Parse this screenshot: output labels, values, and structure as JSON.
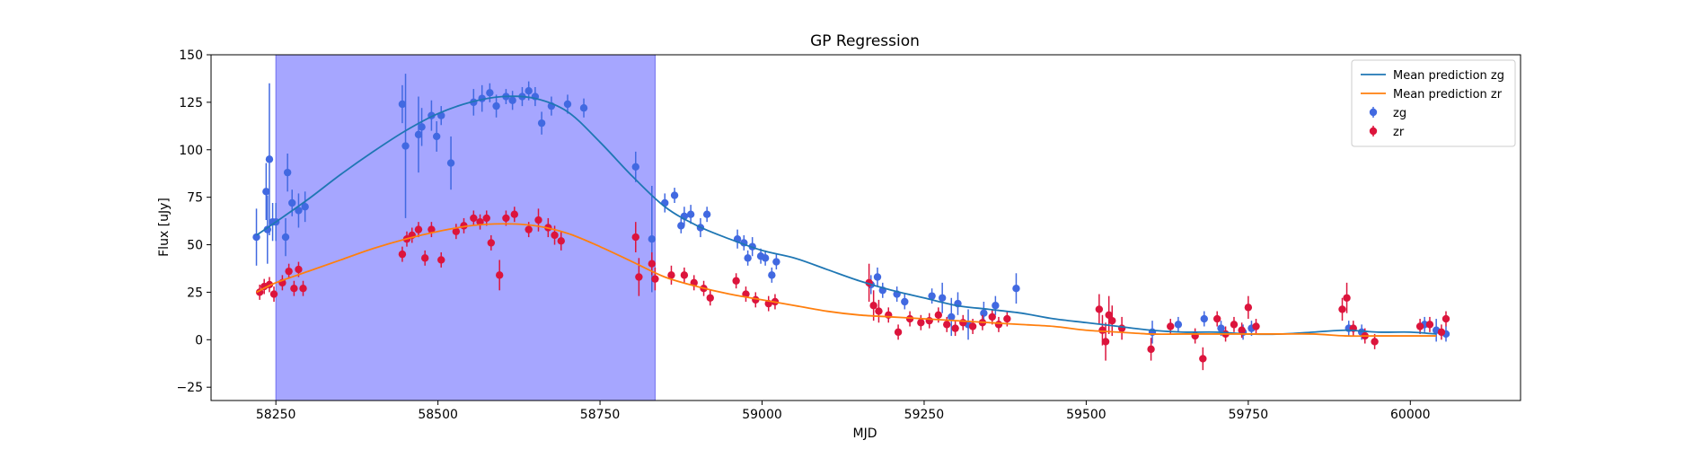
{
  "chart_data": {
    "type": "scatter",
    "title": "GP Regression",
    "xlabel": "MJD",
    "ylabel": "Flux [uJy]",
    "xlim": [
      58150,
      60170
    ],
    "ylim": [
      -32,
      150
    ],
    "x_ticks": [
      58250,
      58500,
      58750,
      59000,
      59250,
      59500,
      59750,
      60000
    ],
    "y_ticks": [
      -25,
      0,
      25,
      50,
      75,
      100,
      125,
      150
    ],
    "highlight_span": {
      "x_start": 58250,
      "x_end": 58835,
      "color": "#a6a6ff"
    },
    "legend": {
      "location": "top-right",
      "entries": [
        "Mean prediction zg",
        "Mean prediction zr",
        "zg",
        "zr"
      ]
    },
    "series": [
      {
        "name": "Mean prediction zg",
        "kind": "line",
        "color": "#1f77b4",
        "x": [
          58220,
          58250,
          58300,
          58350,
          58400,
          58450,
          58500,
          58550,
          58600,
          58650,
          58700,
          58750,
          58800,
          58850,
          58900,
          58950,
          59000,
          59050,
          59100,
          59150,
          59200,
          59250,
          59300,
          59350,
          59400,
          59450,
          59500,
          59550,
          59600,
          59650,
          59700,
          59750,
          59800,
          59850,
          59900,
          59950,
          60000,
          60040
        ],
        "y": [
          55,
          62,
          74,
          87,
          99,
          110,
          119,
          125,
          128,
          127,
          120,
          104,
          86,
          70,
          60,
          53,
          47,
          43,
          37,
          31,
          26,
          22,
          18,
          16,
          14,
          11,
          9,
          7,
          5,
          4,
          4,
          3,
          3,
          4,
          5,
          4,
          4,
          3
        ]
      },
      {
        "name": "Mean prediction zr",
        "kind": "line",
        "color": "#ff7f0e",
        "x": [
          58220,
          58250,
          58300,
          58350,
          58400,
          58450,
          58500,
          58550,
          58600,
          58650,
          58700,
          58750,
          58800,
          58850,
          58900,
          58950,
          59000,
          59050,
          59100,
          59150,
          59200,
          59250,
          59300,
          59350,
          59400,
          59450,
          59500,
          59550,
          59600,
          59650,
          59700,
          59750,
          59800,
          59850,
          59900,
          59950,
          60000,
          60040
        ],
        "y": [
          25,
          30,
          36,
          42,
          48,
          53,
          57,
          60,
          61,
          60,
          56,
          49,
          41,
          33,
          28,
          24,
          21,
          18,
          15,
          13,
          12,
          11,
          10,
          9,
          8,
          7,
          5,
          4,
          3,
          3,
          3,
          3,
          3,
          3,
          2,
          2,
          2,
          2
        ]
      },
      {
        "name": "zg",
        "kind": "errorbar",
        "color": "#4169e1",
        "x": [
          58220,
          58235,
          58237,
          58240,
          58245,
          58250,
          58265,
          58268,
          58275,
          58285,
          58295,
          58445,
          58450,
          58470,
          58475,
          58490,
          58498,
          58505,
          58520,
          58555,
          58568,
          58580,
          58590,
          58605,
          58615,
          58630,
          58640,
          58650,
          58660,
          58675,
          58700,
          58725,
          58805,
          58830,
          58850,
          58865,
          58875,
          58880,
          58890,
          58905,
          58915,
          58962,
          58972,
          58978,
          58985,
          58998,
          59005,
          59015,
          59022,
          59168,
          59178,
          59186,
          59208,
          59220,
          59262,
          59278,
          59292,
          59302,
          59318,
          59342,
          59360,
          59392,
          59602,
          59642,
          59682,
          59708,
          59742,
          59755,
          59905,
          59925,
          60022,
          60040,
          60055
        ],
        "y": [
          54,
          78,
          58,
          95,
          62,
          62,
          54,
          88,
          72,
          68,
          70,
          124,
          102,
          108,
          112,
          118,
          107,
          118,
          93,
          125,
          127,
          130,
          123,
          128,
          126,
          128,
          131,
          128,
          114,
          123,
          124,
          122,
          91,
          53,
          72,
          76,
          60,
          65,
          66,
          59,
          66,
          53,
          51,
          43,
          49,
          44,
          43,
          34,
          41,
          29,
          33,
          26,
          24,
          20,
          23,
          22,
          12,
          19,
          8,
          14,
          18,
          27,
          4,
          8,
          11,
          6,
          4,
          6,
          6,
          4,
          8,
          5,
          3
        ],
        "err": [
          15,
          15,
          18,
          40,
          10,
          10,
          10,
          10,
          7,
          9,
          8,
          10,
          38,
          20,
          10,
          8,
          8,
          5,
          14,
          7,
          7,
          5,
          6,
          4,
          5,
          5,
          5,
          5,
          6,
          5,
          5,
          5,
          8,
          28,
          5,
          4,
          4,
          5,
          5,
          5,
          4,
          5,
          4,
          4,
          5,
          4,
          4,
          4,
          4,
          5,
          5,
          4,
          4,
          4,
          4,
          8,
          10,
          6,
          8,
          6,
          5,
          8,
          6,
          4,
          4,
          4,
          4,
          4,
          4,
          4,
          4,
          6,
          4
        ]
      },
      {
        "name": "zr",
        "kind": "errorbar",
        "color": "#dc143c",
        "x": [
          58225,
          58232,
          58240,
          58247,
          58260,
          58270,
          58278,
          58285,
          58292,
          58445,
          58452,
          58460,
          58470,
          58480,
          58490,
          58505,
          58528,
          58540,
          58555,
          58565,
          58575,
          58582,
          58595,
          58605,
          58618,
          58640,
          58655,
          58670,
          58680,
          58690,
          58805,
          58810,
          58830,
          58835,
          58860,
          58880,
          58895,
          58910,
          58920,
          58960,
          58975,
          58990,
          59010,
          59020,
          59165,
          59172,
          59180,
          59195,
          59210,
          59228,
          59245,
          59258,
          59272,
          59285,
          59298,
          59310,
          59325,
          59340,
          59355,
          59365,
          59378,
          59520,
          59525,
          59530,
          59535,
          59540,
          59555,
          59600,
          59630,
          59668,
          59680,
          59702,
          59715,
          59728,
          59740,
          59750,
          59762,
          59895,
          59902,
          59912,
          59930,
          59945,
          60015,
          60030,
          60048,
          60055
        ],
        "y": [
          25,
          28,
          29,
          24,
          30,
          36,
          27,
          37,
          27,
          45,
          53,
          55,
          58,
          43,
          58,
          42,
          57,
          60,
          64,
          62,
          64,
          51,
          34,
          64,
          66,
          58,
          63,
          59,
          55,
          52,
          54,
          33,
          40,
          32,
          34,
          34,
          30,
          27,
          22,
          31,
          24,
          21,
          19,
          20,
          30,
          18,
          15,
          13,
          4,
          11,
          9,
          10,
          13,
          8,
          6,
          9,
          7,
          9,
          12,
          8,
          11,
          16,
          5,
          -1,
          13,
          10,
          6,
          -5,
          7,
          2,
          -10,
          11,
          3,
          8,
          5,
          17,
          7,
          16,
          22,
          6,
          2,
          -1,
          7,
          8,
          4,
          11
        ],
        "err": [
          4,
          4,
          4,
          4,
          4,
          4,
          4,
          4,
          4,
          4,
          4,
          4,
          4,
          4,
          4,
          4,
          4,
          4,
          4,
          4,
          4,
          4,
          8,
          4,
          4,
          4,
          6,
          5,
          5,
          5,
          8,
          10,
          6,
          6,
          5,
          4,
          4,
          4,
          4,
          4,
          4,
          4,
          4,
          4,
          10,
          8,
          6,
          4,
          4,
          4,
          4,
          4,
          4,
          4,
          4,
          4,
          4,
          4,
          4,
          4,
          4,
          8,
          8,
          10,
          10,
          8,
          6,
          6,
          4,
          4,
          6,
          4,
          4,
          4,
          4,
          6,
          4,
          6,
          8,
          4,
          4,
          4,
          4,
          4,
          4,
          4
        ]
      }
    ]
  }
}
